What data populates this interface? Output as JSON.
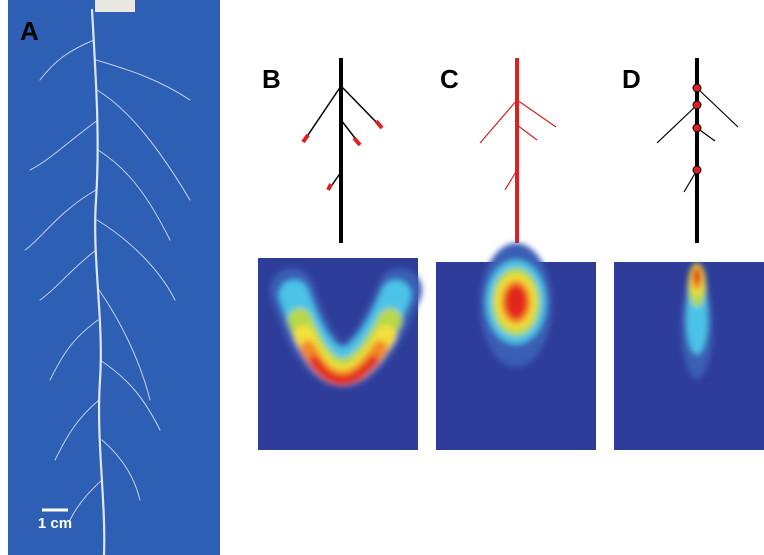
{
  "panels": {
    "a": {
      "label": "A",
      "scale_bar": "1 cm"
    },
    "b": {
      "label": "B"
    },
    "c": {
      "label": "C"
    },
    "d": {
      "label": "D"
    }
  }
}
